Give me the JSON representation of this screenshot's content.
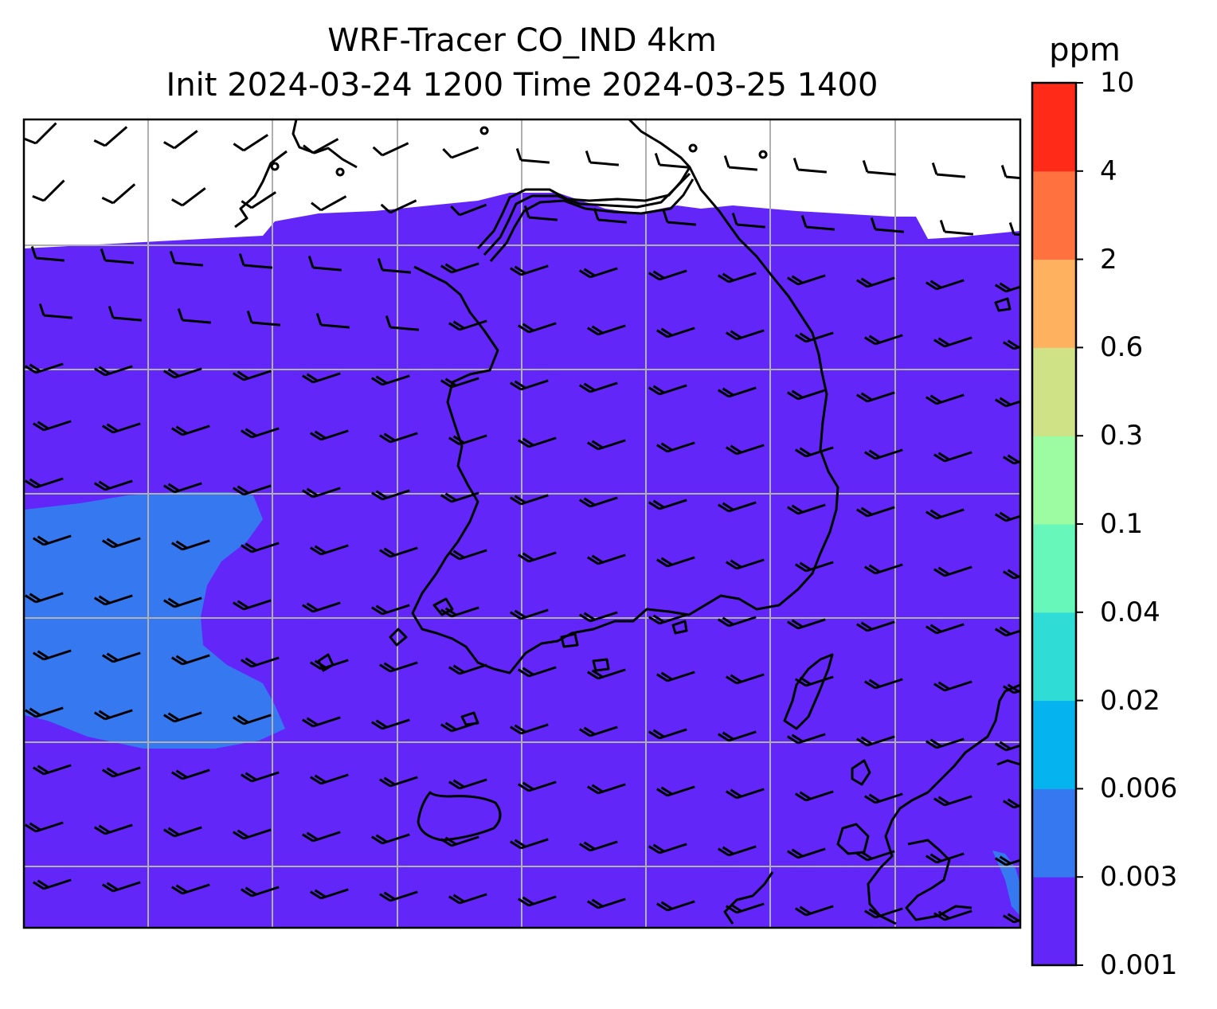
{
  "title": {
    "line1": "WRF-Tracer CO_IND 4km",
    "line2": "Init 2024-03-24 1200 Time 2024-03-25 1400"
  },
  "colorbar": {
    "unit": "ppm",
    "ticks": [
      "0.001",
      "0.003",
      "0.006",
      "0.02",
      "0.04",
      "0.1",
      "0.3",
      "0.6",
      "2",
      "4",
      "10"
    ],
    "colors": [
      "#6226f8",
      "#3578f0",
      "#05b4ef",
      "#2fdcd6",
      "#68f7ba",
      "#9dfba1",
      "#d0e286",
      "#feb15e",
      "#ff713e",
      "#ff2a17"
    ]
  },
  "map": {
    "background_fill": "#6226f8",
    "low_region_fill": "#3578f0",
    "gridlines": true,
    "wind_barbs": true
  }
}
